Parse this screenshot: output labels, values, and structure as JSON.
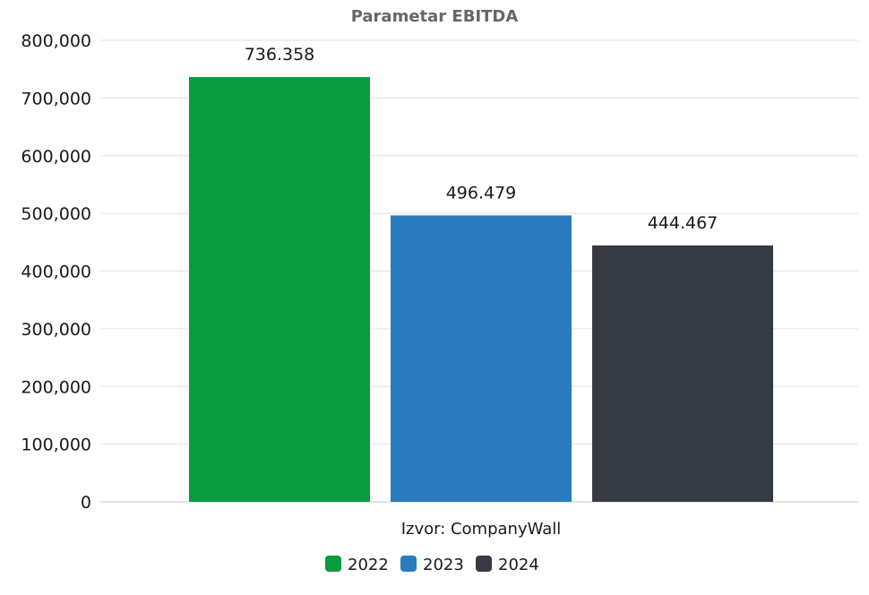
{
  "chart_data": {
    "type": "bar",
    "title": "Parametar EBITDA",
    "xlabel": "Izvor: CompanyWall",
    "ylabel": "",
    "ylim": [
      0,
      800000
    ],
    "y_ticks": [
      0,
      100000,
      200000,
      300000,
      400000,
      500000,
      600000,
      700000,
      800000
    ],
    "y_tick_labels": [
      "0",
      "100,000",
      "200,000",
      "300,000",
      "400,000",
      "500,000",
      "600,000",
      "700,000",
      "800,000"
    ],
    "grid": true,
    "legend_position": "bottom-center",
    "series": [
      {
        "name": "2022",
        "value": 736358,
        "label": "736.358",
        "color": "#0a9a3f"
      },
      {
        "name": "2023",
        "value": 496479,
        "label": "496.479",
        "color": "#2a7bbd"
      },
      {
        "name": "2024",
        "value": 444467,
        "label": "444.467",
        "color": "#363a42"
      }
    ]
  }
}
